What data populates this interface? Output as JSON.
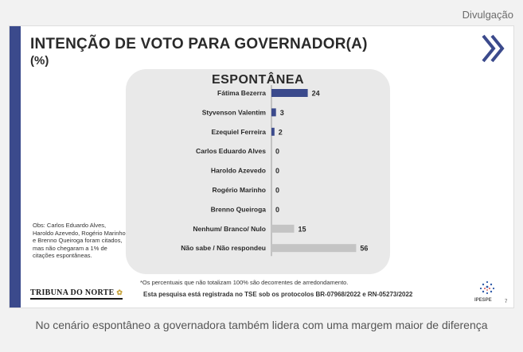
{
  "credit": "Divulgação",
  "slide": {
    "title": "INTENÇÃO DE VOTO PARA GOVERNADOR(A)",
    "subtitle": "(%)",
    "panel_title": "ESPONTÂNEA",
    "obs": "Obs: Carlos Eduardo Alves, Haroldo Azevedo, Rogério Marinho e Brenno Queiroga foram citados, mas não chegaram a 1% de citações espontâneas.",
    "footnote": "*Os percentuais que não totalizam 100% são decorrentes de arredondamento.",
    "protocol": "Esta pesquisa está registrada no TSE sob os protocolos BR-07968/2022 e RN-05273/2022",
    "logo_left": "TRIBUNA DO NORTE",
    "logo_right": "IPESPE",
    "page_number": "7"
  },
  "caption": "No cenário espontâneo a governadora também lidera com uma margem maior de diferença",
  "colors": {
    "accent": "#3b4a8c",
    "grey_bar": "#c4c4c4",
    "panel_bg": "#e9e9e9"
  },
  "chart_data": {
    "type": "bar",
    "orientation": "horizontal",
    "title": "ESPONTÂNEA",
    "categories": [
      "Fátima Bezerra",
      "Styvenson Valentim",
      "Ezequiel Ferreira",
      "Carlos Eduardo Alves",
      "Haroldo Azevedo",
      "Rogério Marinho",
      "Brenno Queiroga",
      "Nenhum/ Branco/ Nulo",
      "Não sabe / Não respondeu"
    ],
    "values": [
      24,
      3,
      2,
      0,
      0,
      0,
      0,
      15,
      56
    ],
    "bar_colors": [
      "#3b4a8c",
      "#3b4a8c",
      "#3b4a8c",
      "#3b4a8c",
      "#3b4a8c",
      "#3b4a8c",
      "#3b4a8c",
      "#c4c4c4",
      "#c4c4c4"
    ],
    "data_labels": [
      "24",
      "3",
      "2",
      "0",
      "0",
      "0",
      "0",
      "15",
      "56"
    ],
    "xlim": [
      0,
      60
    ],
    "grid": false,
    "legend": "none"
  }
}
